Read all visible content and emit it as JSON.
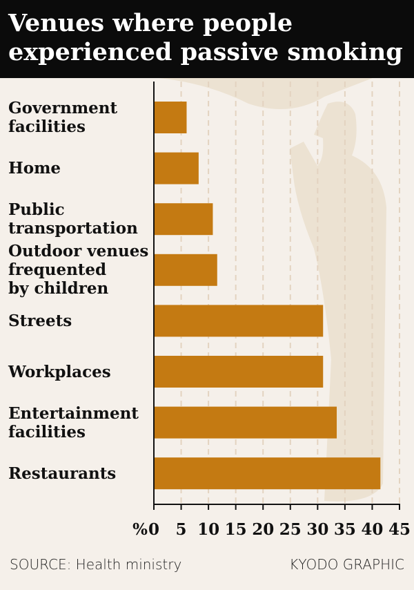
{
  "chart_data": {
    "type": "bar",
    "orientation": "horizontal",
    "title": "Venues where people experienced passive smoking",
    "title_lines": [
      "Venues where people",
      "experienced passive smoking"
    ],
    "categories": [
      "Government facilities",
      "Home",
      "Public transportation",
      "Outdoor venues frequented by children",
      "Streets",
      "Workplaces",
      "Entertainment facilities",
      "Restaurants"
    ],
    "category_lines": [
      [
        "Government",
        "facilities"
      ],
      [
        "Home"
      ],
      [
        "Public",
        "transportation"
      ],
      [
        "Outdoor venues",
        "frequented",
        "by children"
      ],
      [
        "Streets"
      ],
      [
        "Workplaces"
      ],
      [
        "Entertainment",
        "facilities"
      ],
      [
        "Restaurants"
      ]
    ],
    "values": [
      6.0,
      8.2,
      10.8,
      11.6,
      31.0,
      31.0,
      33.5,
      41.5
    ],
    "xlabel": "%",
    "xlim": [
      0,
      45
    ],
    "xticks": [
      "0",
      "5",
      "10",
      "15",
      "20",
      "25",
      "30",
      "35",
      "40",
      "45"
    ],
    "grid": true,
    "bar_color": "#c47a12"
  },
  "footer": {
    "source": "SOURCE: Health ministry",
    "credit": "KYODO GRAPHIC"
  }
}
